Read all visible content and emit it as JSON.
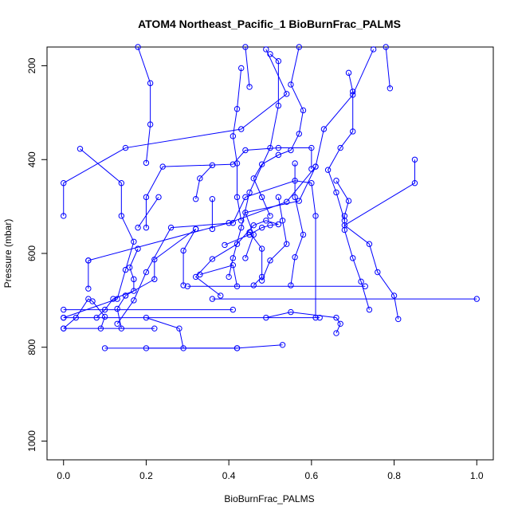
{
  "chart_data": {
    "type": "line",
    "title": "ATOM4 Northeast_Pacific_1 BioBurnFrac_PALMS",
    "xlabel": "BioBurnFrac_PALMS",
    "ylabel": "Pressure (mbar)",
    "xlim": [
      -0.04,
      1.04
    ],
    "ylim": [
      1040,
      160
    ],
    "y_inverted": true,
    "x_ticks": [
      "0.0",
      "0.2",
      "0.4",
      "0.6",
      "0.8",
      "1.0"
    ],
    "y_ticks": [
      "200",
      "400",
      "600",
      "800",
      "1000"
    ],
    "grid": false,
    "legend": "none",
    "colors": {
      "series": "#0000ff",
      "axes": "#000000"
    },
    "series": [
      {
        "points": [
          [
            0.41,
            720
          ],
          [
            0.0,
            720
          ]
        ]
      },
      {
        "points": [
          [
            0.0,
            737
          ],
          [
            0.62,
            737
          ]
        ]
      },
      {
        "points": [
          [
            0.0,
            760
          ],
          [
            0.22,
            760
          ]
        ]
      },
      {
        "points": [
          [
            0.1,
            802
          ],
          [
            0.42,
            802
          ]
        ]
      },
      {
        "points": [
          [
            0.3,
            670
          ],
          [
            0.73,
            670
          ]
        ]
      },
      {
        "points": [
          [
            0.36,
            697
          ],
          [
            1.0,
            697
          ]
        ]
      },
      {
        "points": [
          [
            0.0,
            520
          ],
          [
            0.0,
            450
          ],
          [
            0.15,
            375
          ],
          [
            0.43,
            335
          ],
          [
            0.54,
            260
          ],
          [
            0.49,
            165
          ]
        ]
      },
      {
        "points": [
          [
            0.04,
            377
          ],
          [
            0.14,
            450
          ],
          [
            0.14,
            520
          ],
          [
            0.17,
            575
          ],
          [
            0.15,
            635
          ],
          [
            0.13,
            697
          ],
          [
            0.0,
            737
          ]
        ]
      },
      {
        "points": [
          [
            0.06,
            615
          ],
          [
            0.4,
            535
          ],
          [
            0.54,
            490
          ],
          [
            0.61,
            415
          ],
          [
            0.63,
            335
          ],
          [
            0.7,
            262
          ],
          [
            0.75,
            165
          ]
        ]
      },
      {
        "points": [
          [
            0.06,
            675
          ],
          [
            0.06,
            615
          ]
        ]
      },
      {
        "points": [
          [
            0.2,
            545
          ],
          [
            0.2,
            480
          ],
          [
            0.24,
            415
          ],
          [
            0.41,
            410
          ],
          [
            0.44,
            380
          ],
          [
            0.52,
            375
          ],
          [
            0.6,
            375
          ],
          [
            0.6,
            420
          ]
        ]
      },
      {
        "points": [
          [
            0.2,
            407
          ],
          [
            0.21,
            325
          ],
          [
            0.21,
            237
          ],
          [
            0.18,
            160
          ]
        ]
      },
      {
        "points": [
          [
            0.13,
            750
          ],
          [
            0.17,
            700
          ],
          [
            0.2,
            640
          ],
          [
            0.26,
            545
          ],
          [
            0.41,
            535
          ],
          [
            0.44,
            480
          ],
          [
            0.56,
            445
          ],
          [
            0.6,
            450
          ],
          [
            0.61,
            520
          ],
          [
            0.61,
            737
          ]
        ]
      },
      {
        "points": [
          [
            0.23,
            480
          ],
          [
            0.18,
            545
          ]
        ]
      },
      {
        "points": [
          [
            0.32,
            484
          ],
          [
            0.33,
            440
          ],
          [
            0.36,
            412
          ]
        ]
      },
      {
        "points": [
          [
            0.36,
            484
          ],
          [
            0.36,
            548
          ]
        ]
      },
      {
        "points": [
          [
            0.32,
            548
          ],
          [
            0.22,
            613
          ],
          [
            0.22,
            655
          ],
          [
            0.15,
            690
          ]
        ]
      },
      {
        "points": [
          [
            0.29,
            668
          ],
          [
            0.29,
            594
          ],
          [
            0.32,
            548
          ]
        ]
      },
      {
        "points": [
          [
            0.43,
            205
          ],
          [
            0.42,
            292
          ],
          [
            0.41,
            350
          ],
          [
            0.42,
            408
          ],
          [
            0.42,
            480
          ],
          [
            0.43,
            530
          ]
        ]
      },
      {
        "points": [
          [
            0.45,
            245
          ],
          [
            0.44,
            160
          ]
        ]
      },
      {
        "points": [
          [
            0.5,
            175
          ],
          [
            0.52,
            190
          ],
          [
            0.52,
            285
          ],
          [
            0.5,
            375
          ],
          [
            0.45,
            470
          ],
          [
            0.43,
            545
          ],
          [
            0.41,
            610
          ],
          [
            0.4,
            650
          ]
        ]
      },
      {
        "points": [
          [
            0.45,
            555
          ],
          [
            0.48,
            590
          ],
          [
            0.48,
            650
          ],
          [
            0.46,
            668
          ]
        ]
      },
      {
        "points": [
          [
            0.56,
            408
          ],
          [
            0.56,
            480
          ],
          [
            0.58,
            560
          ],
          [
            0.56,
            608
          ],
          [
            0.55,
            668
          ]
        ]
      },
      {
        "points": [
          [
            0.52,
            480
          ],
          [
            0.53,
            530
          ],
          [
            0.54,
            580
          ],
          [
            0.5,
            615
          ],
          [
            0.48,
            658
          ]
        ]
      },
      {
        "points": [
          [
            0.61,
            415
          ],
          [
            0.57,
            488
          ],
          [
            0.44,
            513
          ],
          [
            0.46,
            560
          ],
          [
            0.44,
            610
          ]
        ]
      },
      {
        "points": [
          [
            0.66,
            445
          ],
          [
            0.69,
            488
          ],
          [
            0.68,
            520
          ],
          [
            0.68,
            550
          ],
          [
            0.7,
            610
          ],
          [
            0.72,
            660
          ],
          [
            0.74,
            720
          ]
        ]
      },
      {
        "points": [
          [
            0.69,
            215
          ],
          [
            0.7,
            255
          ],
          [
            0.7,
            340
          ],
          [
            0.67,
            375
          ],
          [
            0.64,
            422
          ],
          [
            0.66,
            470
          ],
          [
            0.68,
            530
          ]
        ]
      },
      {
        "points": [
          [
            0.85,
            400
          ],
          [
            0.85,
            450
          ],
          [
            0.68,
            540
          ],
          [
            0.74,
            580
          ],
          [
            0.76,
            640
          ],
          [
            0.8,
            690
          ],
          [
            0.81,
            740
          ]
        ]
      },
      {
        "points": [
          [
            0.79,
            248
          ],
          [
            0.78,
            160
          ]
        ]
      },
      {
        "points": [
          [
            0.33,
            645
          ],
          [
            0.41,
            625
          ],
          [
            0.42,
            670
          ]
        ]
      },
      {
        "points": [
          [
            0.14,
            760
          ],
          [
            0.13,
            718
          ],
          [
            0.15,
            690
          ]
        ]
      },
      {
        "points": [
          [
            0.2,
            737
          ],
          [
            0.28,
            760
          ],
          [
            0.29,
            802
          ]
        ]
      },
      {
        "points": [
          [
            0.53,
            795
          ],
          [
            0.42,
            802
          ],
          [
            0.2,
            802
          ]
        ]
      },
      {
        "points": [
          [
            0.66,
            770
          ],
          [
            0.67,
            750
          ],
          [
            0.66,
            737
          ],
          [
            0.55,
            725
          ],
          [
            0.49,
            737
          ]
        ]
      },
      {
        "points": [
          [
            0.08,
            737
          ],
          [
            0.1,
            720
          ],
          [
            0.12,
            697
          ],
          [
            0.17,
            680
          ],
          [
            0.17,
            655
          ],
          [
            0.16,
            630
          ],
          [
            0.18,
            590
          ]
        ]
      },
      {
        "points": [
          [
            0.0,
            760
          ],
          [
            0.03,
            737
          ],
          [
            0.06,
            697
          ],
          [
            0.07,
            702
          ],
          [
            0.1,
            735
          ],
          [
            0.09,
            760
          ]
        ]
      },
      {
        "points": [
          [
            0.39,
            582
          ],
          [
            0.45,
            560
          ],
          [
            0.48,
            545
          ],
          [
            0.5,
            540
          ],
          [
            0.52,
            538
          ],
          [
            0.49,
            530
          ],
          [
            0.46,
            540
          ],
          [
            0.42,
            580
          ],
          [
            0.36,
            612
          ],
          [
            0.32,
            650
          ],
          [
            0.38,
            690
          ]
        ]
      },
      {
        "points": [
          [
            0.57,
            160
          ],
          [
            0.55,
            240
          ],
          [
            0.58,
            295
          ],
          [
            0.57,
            345
          ],
          [
            0.55,
            380
          ],
          [
            0.52,
            390
          ],
          [
            0.48,
            410
          ],
          [
            0.46,
            440
          ],
          [
            0.48,
            480
          ],
          [
            0.5,
            520
          ]
        ]
      }
    ]
  }
}
